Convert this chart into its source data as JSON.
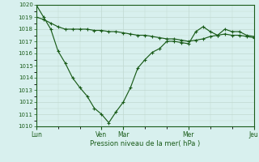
{
  "bg_color": "#d8f0ee",
  "plot_bg_color": "#d8f0ee",
  "grid_color": "#c0d8d0",
  "line_color": "#1a5c1a",
  "title": "Pression niveau de la mer( hPa )",
  "ylim": [
    1010,
    1020
  ],
  "yticks": [
    1010,
    1011,
    1012,
    1013,
    1014,
    1015,
    1016,
    1017,
    1018,
    1019,
    1020
  ],
  "xtick_labels": [
    "Lun",
    "Ven",
    "Mar",
    "Mer",
    "Jeu"
  ],
  "xtick_positions": [
    0,
    9,
    12,
    21,
    30
  ],
  "xlim": [
    0,
    30
  ],
  "line1_x": [
    0,
    1,
    2,
    3,
    4,
    5,
    6,
    7,
    8,
    9,
    10,
    11,
    12,
    13,
    14,
    15,
    16,
    17,
    18,
    19,
    20,
    21,
    22,
    23,
    24,
    25,
    26,
    27,
    28,
    29,
    30
  ],
  "line1_y": [
    1020,
    1019,
    1018,
    1016.2,
    1015.2,
    1014.0,
    1013.2,
    1012.5,
    1011.5,
    1011.0,
    1010.3,
    1011.2,
    1012.0,
    1013.2,
    1014.8,
    1015.5,
    1016.1,
    1016.4,
    1017.0,
    1017.0,
    1016.9,
    1016.8,
    1017.8,
    1018.2,
    1017.8,
    1017.5,
    1018.0,
    1017.8,
    1017.8,
    1017.5,
    1017.4
  ],
  "line2_x": [
    0,
    1,
    2,
    3,
    4,
    5,
    6,
    7,
    8,
    9,
    10,
    11,
    12,
    13,
    14,
    15,
    16,
    17,
    18,
    19,
    20,
    21,
    22,
    23,
    24,
    25,
    26,
    27,
    28,
    29,
    30
  ],
  "line2_y": [
    1019.0,
    1018.8,
    1018.5,
    1018.2,
    1018.0,
    1018.0,
    1018.0,
    1018.0,
    1017.9,
    1017.9,
    1017.8,
    1017.8,
    1017.7,
    1017.6,
    1017.5,
    1017.5,
    1017.4,
    1017.3,
    1017.2,
    1017.2,
    1017.1,
    1017.0,
    1017.1,
    1017.2,
    1017.4,
    1017.5,
    1017.6,
    1017.5,
    1017.5,
    1017.4,
    1017.3
  ]
}
